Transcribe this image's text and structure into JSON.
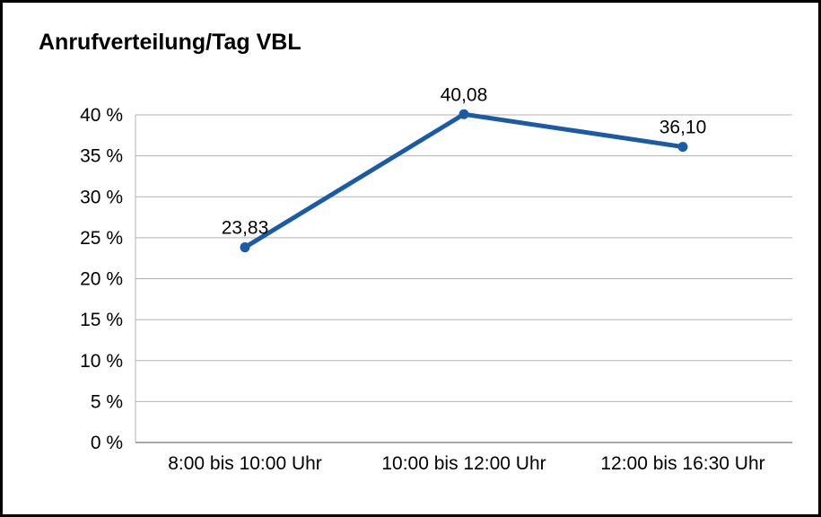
{
  "frame": {
    "border_color": "#000000",
    "background": "#ffffff"
  },
  "chart_data": {
    "type": "line",
    "title": "Anrufverteilung/Tag VBL",
    "categories": [
      "8:00 bis 10:00 Uhr",
      "10:00 bis 12:00 Uhr",
      "12:00 bis 16:30 Uhr"
    ],
    "values": [
      23.83,
      40.08,
      36.1
    ],
    "data_labels": [
      "23,83",
      "40,08",
      "36,10"
    ],
    "y_ticks": [
      0,
      5,
      10,
      15,
      20,
      25,
      30,
      35,
      40
    ],
    "y_tick_labels": [
      "0 %",
      "5 %",
      "10 %",
      "15 %",
      "20 %",
      "25 %",
      "30 %",
      "35 %",
      "40 %"
    ],
    "ylim": [
      0,
      40
    ],
    "xlabel": "",
    "ylabel": "",
    "grid": true,
    "legend_position": "none",
    "line_color": "#1b5aa5",
    "marker_color": "#1b5aa5",
    "gridline_color": "#b3b3b3",
    "axis_color": "#8c8c8c",
    "label_color": "#000000"
  }
}
